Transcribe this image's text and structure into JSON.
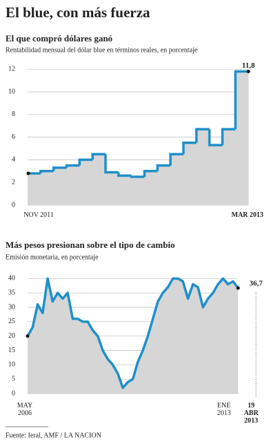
{
  "title": "El blue, con más fuerza",
  "source": "Fuente: Ieral, AMF / LA NACION",
  "chart_data": [
    {
      "type": "step",
      "title": "El que compró dólares ganó",
      "subtitle": "Rentabilidad mensual del dólar blue en términos reales, en porcentaje",
      "categories": [
        "NOV 2011",
        null,
        null,
        null,
        null,
        null,
        null,
        null,
        null,
        null,
        null,
        null,
        null,
        null,
        null,
        null,
        "MAR 2013"
      ],
      "values": [
        2.8,
        3.0,
        3.3,
        3.5,
        4.0,
        4.5,
        2.9,
        2.6,
        2.5,
        3.0,
        3.5,
        4.5,
        5.5,
        6.7,
        5.3,
        6.7,
        11.8
      ],
      "value_labels": [
        null,
        null,
        null,
        null,
        null,
        null,
        null,
        null,
        null,
        null,
        null,
        null,
        null,
        null,
        null,
        null,
        "11,8"
      ],
      "color": "#1f8fc9",
      "area_color": "#d6d6d6",
      "ylim": [
        0,
        12.5
      ],
      "yticks": [
        0,
        2,
        4,
        6,
        8,
        10,
        12
      ],
      "grid": true
    },
    {
      "type": "line",
      "title": "Más pesos presionan sobre el tipo de cambio",
      "subtitle": "Emisión monetaria, en porcentaje",
      "categories": [
        "MAY 2006",
        null,
        null,
        null,
        null,
        null,
        null,
        null,
        null,
        null,
        null,
        null,
        null,
        null,
        null,
        null,
        null,
        null,
        null,
        null,
        null,
        null,
        null,
        null,
        null,
        null,
        null,
        null,
        null,
        null,
        null,
        null,
        null,
        null,
        null,
        null,
        null,
        null,
        null,
        null,
        "ENE 2013",
        null,
        "19 ABR 2013"
      ],
      "values": [
        20,
        23,
        31,
        28,
        40,
        32,
        35,
        33,
        35,
        26,
        26,
        25,
        25,
        22,
        20,
        15,
        12,
        10,
        7,
        2,
        4,
        5,
        11,
        15,
        20,
        26,
        32,
        35,
        37,
        40,
        40,
        39,
        33,
        38,
        37,
        30,
        33,
        35,
        38,
        40,
        38,
        39,
        36.7
      ],
      "value_labels": [
        null,
        null,
        null,
        null,
        null,
        null,
        null,
        null,
        null,
        null,
        null,
        null,
        null,
        null,
        null,
        null,
        null,
        null,
        null,
        null,
        null,
        null,
        null,
        null,
        null,
        null,
        null,
        null,
        null,
        null,
        null,
        null,
        null,
        null,
        null,
        null,
        null,
        null,
        null,
        null,
        null,
        null,
        "36,7"
      ],
      "color": "#1f8fc9",
      "area_color": "#d6d6d6",
      "ylim": [
        0,
        42
      ],
      "yticks": [
        0,
        5,
        10,
        15,
        20,
        25,
        30,
        35,
        40
      ],
      "grid": true
    }
  ]
}
